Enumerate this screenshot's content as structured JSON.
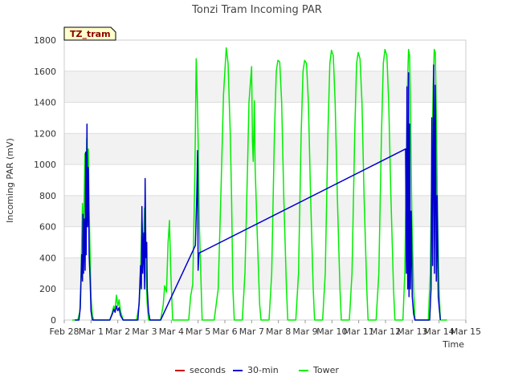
{
  "chart_data": {
    "type": "line",
    "title": "Tonzi Tram Incoming PAR",
    "badge": "TZ_tram",
    "xlabel": "Time",
    "ylabel": "Incoming PAR (mV)",
    "xlim": [
      0,
      15
    ],
    "ylim": [
      0,
      1800
    ],
    "x_ticks": [
      {
        "pos": 0,
        "label": "Feb 28"
      },
      {
        "pos": 1,
        "label": "Mar 1"
      },
      {
        "pos": 2,
        "label": "Mar 2"
      },
      {
        "pos": 3,
        "label": "Mar 3"
      },
      {
        "pos": 4,
        "label": "Mar 4"
      },
      {
        "pos": 5,
        "label": "Mar 5"
      },
      {
        "pos": 6,
        "label": "Mar 6"
      },
      {
        "pos": 7,
        "label": "Mar 7"
      },
      {
        "pos": 8,
        "label": "Mar 8"
      },
      {
        "pos": 9,
        "label": "Mar 9"
      },
      {
        "pos": 10,
        "label": "Mar 10"
      },
      {
        "pos": 11,
        "label": "Mar 11"
      },
      {
        "pos": 12,
        "label": "Mar 12"
      },
      {
        "pos": 13,
        "label": "Mar 13"
      },
      {
        "pos": 14,
        "label": "Mar 14"
      },
      {
        "pos": 15,
        "label": "Mar 15"
      }
    ],
    "y_ticks": [
      0,
      200,
      400,
      600,
      800,
      1000,
      1200,
      1400,
      1600,
      1800
    ],
    "grid_bands": true,
    "legend_position": "bottom-center",
    "series": [
      {
        "name": "seconds",
        "color": "#cc0000",
        "points": []
      },
      {
        "name": "30-min",
        "color": "#0000cc",
        "points": [
          [
            0.4,
            0
          ],
          [
            0.55,
            0
          ],
          [
            0.6,
            80
          ],
          [
            0.65,
            420
          ],
          [
            0.68,
            250
          ],
          [
            0.7,
            680
          ],
          [
            0.72,
            300
          ],
          [
            0.75,
            650
          ],
          [
            0.78,
            320
          ],
          [
            0.8,
            1080
          ],
          [
            0.82,
            420
          ],
          [
            0.85,
            1260
          ],
          [
            0.87,
            600
          ],
          [
            0.9,
            980
          ],
          [
            0.93,
            420
          ],
          [
            0.97,
            250
          ],
          [
            1.0,
            60
          ],
          [
            1.05,
            0
          ],
          [
            1.7,
            0
          ],
          [
            1.75,
            20
          ],
          [
            1.8,
            40
          ],
          [
            1.85,
            70
          ],
          [
            1.9,
            50
          ],
          [
            1.95,
            90
          ],
          [
            2.0,
            60
          ],
          [
            2.05,
            80
          ],
          [
            2.1,
            30
          ],
          [
            2.2,
            0
          ],
          [
            2.75,
            0
          ],
          [
            2.8,
            120
          ],
          [
            2.85,
            350
          ],
          [
            2.88,
            200
          ],
          [
            2.9,
            730
          ],
          [
            2.93,
            300
          ],
          [
            2.97,
            560
          ],
          [
            3.0,
            200
          ],
          [
            3.02,
            910
          ],
          [
            3.05,
            400
          ],
          [
            3.08,
            500
          ],
          [
            3.1,
            200
          ],
          [
            3.15,
            50
          ],
          [
            3.2,
            0
          ],
          [
            3.6,
            0
          ],
          [
            4.9,
            480
          ],
          [
            4.95,
            800
          ],
          [
            4.98,
            1090
          ],
          [
            5.0,
            320
          ],
          [
            5.03,
            430
          ],
          [
            12.75,
            1100
          ],
          [
            12.78,
            300
          ],
          [
            12.8,
            1500
          ],
          [
            12.83,
            200
          ],
          [
            12.86,
            1590
          ],
          [
            12.88,
            150
          ],
          [
            12.9,
            1260
          ],
          [
            12.93,
            200
          ],
          [
            12.96,
            700
          ],
          [
            13.0,
            150
          ],
          [
            13.05,
            40
          ],
          [
            13.1,
            0
          ],
          [
            13.65,
            0
          ],
          [
            13.7,
            200
          ],
          [
            13.73,
            1300
          ],
          [
            13.76,
            350
          ],
          [
            13.8,
            1640
          ],
          [
            13.83,
            300
          ],
          [
            13.86,
            1510
          ],
          [
            13.9,
            250
          ],
          [
            13.93,
            800
          ],
          [
            13.97,
            150
          ],
          [
            14.0,
            90
          ],
          [
            14.05,
            0
          ]
        ]
      },
      {
        "name": "Tower",
        "color": "#00ee00",
        "points": [
          [
            0.3,
            0
          ],
          [
            0.5,
            0
          ],
          [
            0.58,
            50
          ],
          [
            0.63,
            300
          ],
          [
            0.68,
            750
          ],
          [
            0.72,
            500
          ],
          [
            0.77,
            1070
          ],
          [
            0.8,
            650
          ],
          [
            0.84,
            1170
          ],
          [
            0.87,
            820
          ],
          [
            0.9,
            1100
          ],
          [
            0.93,
            700
          ],
          [
            0.97,
            400
          ],
          [
            1.0,
            150
          ],
          [
            1.05,
            30
          ],
          [
            1.1,
            0
          ],
          [
            1.7,
            0
          ],
          [
            1.78,
            40
          ],
          [
            1.85,
            90
          ],
          [
            1.9,
            70
          ],
          [
            1.95,
            160
          ],
          [
            2.0,
            90
          ],
          [
            2.05,
            130
          ],
          [
            2.1,
            60
          ],
          [
            2.2,
            0
          ],
          [
            2.7,
            0
          ],
          [
            2.8,
            100
          ],
          [
            2.85,
            300
          ],
          [
            2.9,
            650
          ],
          [
            2.95,
            430
          ],
          [
            3.0,
            720
          ],
          [
            3.05,
            300
          ],
          [
            3.1,
            100
          ],
          [
            3.15,
            0
          ],
          [
            3.6,
            0
          ],
          [
            3.7,
            100
          ],
          [
            3.75,
            220
          ],
          [
            3.82,
            180
          ],
          [
            3.88,
            500
          ],
          [
            3.93,
            640
          ],
          [
            3.98,
            300
          ],
          [
            4.05,
            0
          ],
          [
            4.65,
            0
          ],
          [
            4.72,
            150
          ],
          [
            4.8,
            230
          ],
          [
            4.88,
            960
          ],
          [
            4.93,
            1680
          ],
          [
            4.97,
            1420
          ],
          [
            5.0,
            1150
          ],
          [
            5.05,
            600
          ],
          [
            5.1,
            300
          ],
          [
            5.15,
            0
          ],
          [
            5.6,
            0
          ],
          [
            5.75,
            200
          ],
          [
            5.85,
            800
          ],
          [
            5.95,
            1450
          ],
          [
            6.05,
            1750
          ],
          [
            6.12,
            1650
          ],
          [
            6.2,
            1200
          ],
          [
            6.25,
            800
          ],
          [
            6.3,
            200
          ],
          [
            6.35,
            0
          ],
          [
            6.65,
            0
          ],
          [
            6.75,
            300
          ],
          [
            6.85,
            1000
          ],
          [
            6.9,
            1400
          ],
          [
            6.95,
            1520
          ],
          [
            7.0,
            1630
          ],
          [
            7.03,
            1150
          ],
          [
            7.06,
            1020
          ],
          [
            7.1,
            1410
          ],
          [
            7.13,
            980
          ],
          [
            7.2,
            600
          ],
          [
            7.3,
            100
          ],
          [
            7.35,
            0
          ],
          [
            7.65,
            0
          ],
          [
            7.75,
            300
          ],
          [
            7.85,
            1200
          ],
          [
            7.92,
            1600
          ],
          [
            7.98,
            1670
          ],
          [
            8.05,
            1660
          ],
          [
            8.12,
            1400
          ],
          [
            8.2,
            800
          ],
          [
            8.3,
            200
          ],
          [
            8.35,
            0
          ],
          [
            8.65,
            0
          ],
          [
            8.75,
            300
          ],
          [
            8.85,
            1200
          ],
          [
            8.92,
            1600
          ],
          [
            8.98,
            1670
          ],
          [
            9.05,
            1650
          ],
          [
            9.12,
            1400
          ],
          [
            9.2,
            800
          ],
          [
            9.3,
            200
          ],
          [
            9.35,
            0
          ],
          [
            9.65,
            0
          ],
          [
            9.75,
            300
          ],
          [
            9.85,
            1200
          ],
          [
            9.92,
            1650
          ],
          [
            9.98,
            1735
          ],
          [
            10.05,
            1700
          ],
          [
            10.12,
            1400
          ],
          [
            10.2,
            800
          ],
          [
            10.3,
            200
          ],
          [
            10.35,
            0
          ],
          [
            10.65,
            0
          ],
          [
            10.75,
            300
          ],
          [
            10.85,
            1200
          ],
          [
            10.92,
            1650
          ],
          [
            10.98,
            1720
          ],
          [
            11.05,
            1680
          ],
          [
            11.12,
            1400
          ],
          [
            11.2,
            800
          ],
          [
            11.3,
            200
          ],
          [
            11.35,
            0
          ],
          [
            11.65,
            0
          ],
          [
            11.75,
            300
          ],
          [
            11.85,
            1200
          ],
          [
            11.92,
            1650
          ],
          [
            11.98,
            1740
          ],
          [
            12.05,
            1700
          ],
          [
            12.12,
            1400
          ],
          [
            12.2,
            800
          ],
          [
            12.3,
            200
          ],
          [
            12.35,
            0
          ],
          [
            12.65,
            0
          ],
          [
            12.72,
            300
          ],
          [
            12.78,
            1000
          ],
          [
            12.82,
            1500
          ],
          [
            12.86,
            1740
          ],
          [
            12.9,
            1700
          ],
          [
            12.94,
            1300
          ],
          [
            12.98,
            700
          ],
          [
            13.05,
            200
          ],
          [
            13.1,
            0
          ],
          [
            13.6,
            0
          ],
          [
            13.67,
            300
          ],
          [
            13.73,
            1000
          ],
          [
            13.78,
            1500
          ],
          [
            13.82,
            1740
          ],
          [
            13.86,
            1720
          ],
          [
            13.9,
            1300
          ],
          [
            13.94,
            700
          ],
          [
            14.0,
            200
          ],
          [
            14.05,
            0
          ],
          [
            14.2,
            0
          ],
          [
            14.3,
            0
          ]
        ]
      }
    ]
  }
}
